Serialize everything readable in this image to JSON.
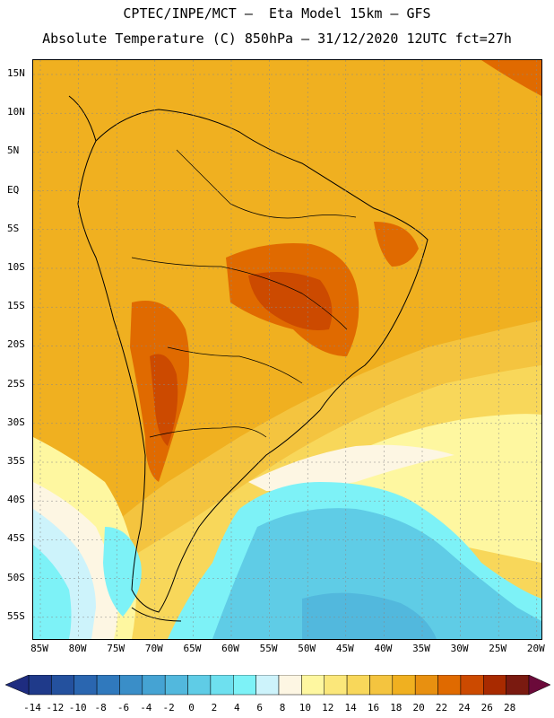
{
  "header": {
    "line1": "CPTEC/INPE/MCT –  Eta Model 15km – GFS",
    "line2": "Absolute Temperature (C) 850hPa – 31/12/2020 12UTC fct=27h"
  },
  "map": {
    "lat_labels": [
      "15N",
      "10N",
      "5N",
      "EQ",
      "5S",
      "10S",
      "15S",
      "20S",
      "25S",
      "30S",
      "35S",
      "40S",
      "45S",
      "50S",
      "55S"
    ],
    "lon_labels": [
      "85W",
      "80W",
      "75W",
      "70W",
      "65W",
      "60W",
      "55W",
      "50W",
      "45W",
      "40W",
      "35W",
      "30W",
      "25W",
      "20W"
    ]
  },
  "colorbar": {
    "labels": [
      "-14",
      "-12",
      "-10",
      "-8",
      "-6",
      "-4",
      "-2",
      "0",
      "2",
      "4",
      "6",
      "8",
      "10",
      "12",
      "14",
      "16",
      "18",
      "20",
      "22",
      "24",
      "26",
      "28"
    ],
    "colors": [
      "#1f3a8a",
      "#24519e",
      "#2a66b0",
      "#3079bd",
      "#3a8ec8",
      "#45a3d3",
      "#52b8dd",
      "#5fcce6",
      "#6ee0ef",
      "#7df2f7",
      "#cdf3fb",
      "#fdf6e3",
      "#fef7a0",
      "#fbe77a",
      "#f8d75a",
      "#f4c43f",
      "#f0b020",
      "#e89010",
      "#e06a00",
      "#cc4a00",
      "#a82a00",
      "#7a1a10"
    ],
    "low_arrow_color": "#1e2c80",
    "high_arrow_color": "#6b0a3a"
  }
}
